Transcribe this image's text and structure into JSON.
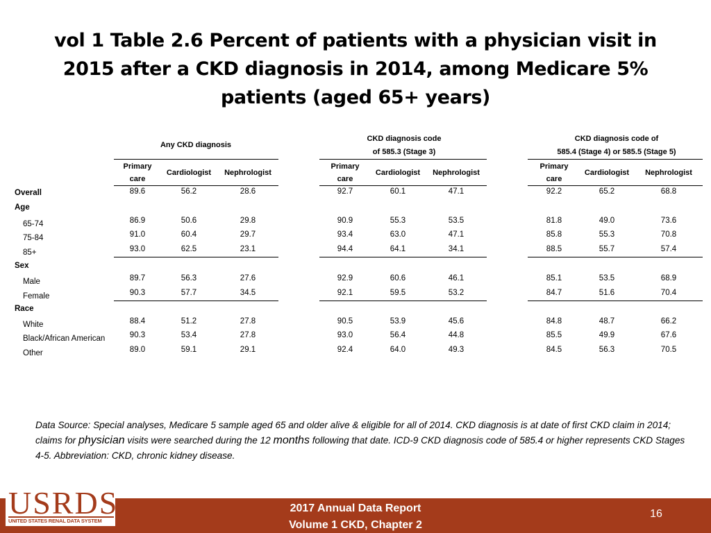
{
  "title": "vol 1 Table 2.6 Percent of patients with a physician visit in 2015 after a CKD diagnosis in 2014, among Medicare 5% patients (aged 65+ years)",
  "table": {
    "groups": [
      {
        "line1": "Any CKD diagnosis",
        "line2": ""
      },
      {
        "line1": "CKD diagnosis code",
        "line2": "of 585.3 (Stage 3)"
      },
      {
        "line1": "CKD diagnosis code of",
        "line2": "585.4 (Stage 4) or 585.5 (Stage 5)"
      }
    ],
    "subheaders": {
      "primary_l1": "Primary",
      "primary_l2": "care",
      "cardiologist": "Cardiologist",
      "nephrologist": "Nephrologist"
    },
    "rows": [
      {
        "label": "Overall",
        "type": "bold",
        "values": [
          "89.6",
          "56.2",
          "28.6",
          "92.7",
          "60.1",
          "47.1",
          "92.2",
          "65.2",
          "68.8"
        ]
      },
      {
        "label": "Age",
        "type": "section"
      },
      {
        "label": "65-74",
        "type": "sub",
        "values": [
          "86.9",
          "50.6",
          "29.8",
          "90.9",
          "55.3",
          "53.5",
          "81.8",
          "49.0",
          "73.6"
        ]
      },
      {
        "label": "75-84",
        "type": "sub",
        "values": [
          "91.0",
          "60.4",
          "29.7",
          "93.4",
          "63.0",
          "47.1",
          "85.8",
          "55.3",
          "70.8"
        ]
      },
      {
        "label": "85+",
        "type": "sub",
        "values": [
          "93.0",
          "62.5",
          "23.1",
          "94.4",
          "64.1",
          "34.1",
          "88.5",
          "55.7",
          "57.4"
        ]
      },
      {
        "label": "Sex",
        "type": "section"
      },
      {
        "label": "Male",
        "type": "sub",
        "values": [
          "89.7",
          "56.3",
          "27.6",
          "92.9",
          "60.6",
          "46.1",
          "85.1",
          "53.5",
          "68.9"
        ]
      },
      {
        "label": "Female",
        "type": "sub",
        "values": [
          "90.3",
          "57.7",
          "34.5",
          "92.1",
          "59.5",
          "53.2",
          "84.7",
          "51.6",
          "70.4"
        ]
      },
      {
        "label": "Race",
        "type": "section"
      },
      {
        "label": "White",
        "type": "sub",
        "values": [
          "88.4",
          "51.2",
          "27.8",
          "90.5",
          "53.9",
          "45.6",
          "84.8",
          "48.7",
          "66.2"
        ]
      },
      {
        "label": "Black/African American",
        "type": "sub",
        "values": [
          "90.3",
          "53.4",
          "27.8",
          "93.0",
          "56.4",
          "44.8",
          "85.5",
          "49.9",
          "67.6"
        ]
      },
      {
        "label": "Other",
        "type": "sub",
        "values": [
          "89.0",
          "59.1",
          "29.1",
          "92.4",
          "64.0",
          "49.3",
          "84.5",
          "56.3",
          "70.5"
        ]
      }
    ]
  },
  "source": {
    "part1": "Data Source: Special analyses, Medicare 5 sample aged 65 and older alive & eligible for all of 2014. CKD diagnosis is at date of first CKD claim in 2014; claims for ",
    "physician": "physician",
    "part2": " visits were searched during the 12 ",
    "months": "months",
    "part3": " following that date. ICD-9 CKD diagnosis code of 585.4 or higher represents CKD Stages 4-5. Abbreviation: CKD, chronic kidney disease."
  },
  "footer": {
    "logo": "USRDS",
    "logo_sub": "UNITED STATES RENAL DATA SYSTEM",
    "line1": "2017 Annual Data Report",
    "line2": "Volume 1 CKD, Chapter 2",
    "page": "16"
  },
  "colors": {
    "footer_bar": "#a43b1b",
    "logo": "#a43b1b"
  }
}
